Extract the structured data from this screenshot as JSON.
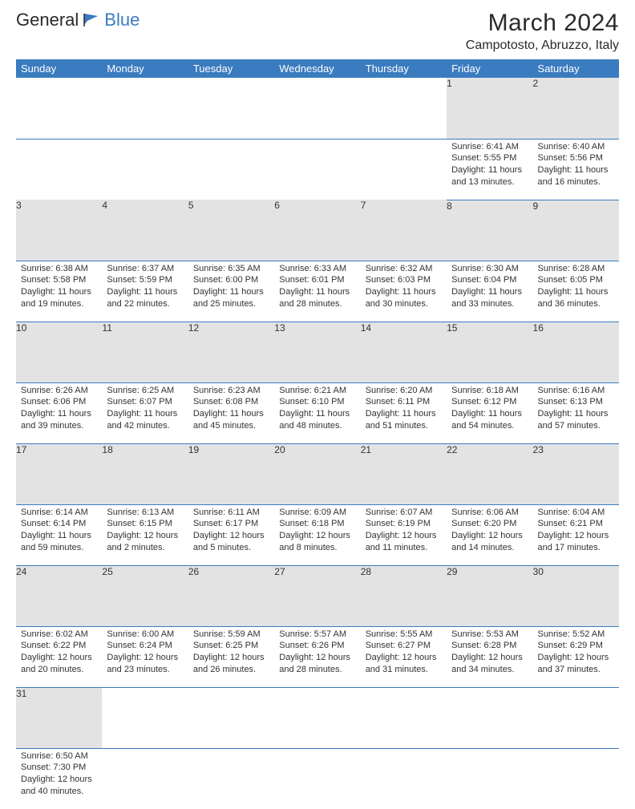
{
  "brand": {
    "part1": "General",
    "part2": "Blue"
  },
  "title": "March 2024",
  "location": "Campotosto, Abruzzo, Italy",
  "colors": {
    "header_bg": "#3b7bbf",
    "header_text": "#ffffff",
    "daynum_bg": "#e3e3e3",
    "border": "#3b7bbf",
    "text": "#333333",
    "page_bg": "#ffffff"
  },
  "dayHeaders": [
    "Sunday",
    "Monday",
    "Tuesday",
    "Wednesday",
    "Thursday",
    "Friday",
    "Saturday"
  ],
  "weeks": [
    [
      null,
      null,
      null,
      null,
      null,
      {
        "n": "1",
        "sunrise": "6:41 AM",
        "sunset": "5:55 PM",
        "daylight": "11 hours and 13 minutes."
      },
      {
        "n": "2",
        "sunrise": "6:40 AM",
        "sunset": "5:56 PM",
        "daylight": "11 hours and 16 minutes."
      }
    ],
    [
      {
        "n": "3",
        "sunrise": "6:38 AM",
        "sunset": "5:58 PM",
        "daylight": "11 hours and 19 minutes."
      },
      {
        "n": "4",
        "sunrise": "6:37 AM",
        "sunset": "5:59 PM",
        "daylight": "11 hours and 22 minutes."
      },
      {
        "n": "5",
        "sunrise": "6:35 AM",
        "sunset": "6:00 PM",
        "daylight": "11 hours and 25 minutes."
      },
      {
        "n": "6",
        "sunrise": "6:33 AM",
        "sunset": "6:01 PM",
        "daylight": "11 hours and 28 minutes."
      },
      {
        "n": "7",
        "sunrise": "6:32 AM",
        "sunset": "6:03 PM",
        "daylight": "11 hours and 30 minutes."
      },
      {
        "n": "8",
        "sunrise": "6:30 AM",
        "sunset": "6:04 PM",
        "daylight": "11 hours and 33 minutes."
      },
      {
        "n": "9",
        "sunrise": "6:28 AM",
        "sunset": "6:05 PM",
        "daylight": "11 hours and 36 minutes."
      }
    ],
    [
      {
        "n": "10",
        "sunrise": "6:26 AM",
        "sunset": "6:06 PM",
        "daylight": "11 hours and 39 minutes."
      },
      {
        "n": "11",
        "sunrise": "6:25 AM",
        "sunset": "6:07 PM",
        "daylight": "11 hours and 42 minutes."
      },
      {
        "n": "12",
        "sunrise": "6:23 AM",
        "sunset": "6:08 PM",
        "daylight": "11 hours and 45 minutes."
      },
      {
        "n": "13",
        "sunrise": "6:21 AM",
        "sunset": "6:10 PM",
        "daylight": "11 hours and 48 minutes."
      },
      {
        "n": "14",
        "sunrise": "6:20 AM",
        "sunset": "6:11 PM",
        "daylight": "11 hours and 51 minutes."
      },
      {
        "n": "15",
        "sunrise": "6:18 AM",
        "sunset": "6:12 PM",
        "daylight": "11 hours and 54 minutes."
      },
      {
        "n": "16",
        "sunrise": "6:16 AM",
        "sunset": "6:13 PM",
        "daylight": "11 hours and 57 minutes."
      }
    ],
    [
      {
        "n": "17",
        "sunrise": "6:14 AM",
        "sunset": "6:14 PM",
        "daylight": "11 hours and 59 minutes."
      },
      {
        "n": "18",
        "sunrise": "6:13 AM",
        "sunset": "6:15 PM",
        "daylight": "12 hours and 2 minutes."
      },
      {
        "n": "19",
        "sunrise": "6:11 AM",
        "sunset": "6:17 PM",
        "daylight": "12 hours and 5 minutes."
      },
      {
        "n": "20",
        "sunrise": "6:09 AM",
        "sunset": "6:18 PM",
        "daylight": "12 hours and 8 minutes."
      },
      {
        "n": "21",
        "sunrise": "6:07 AM",
        "sunset": "6:19 PM",
        "daylight": "12 hours and 11 minutes."
      },
      {
        "n": "22",
        "sunrise": "6:06 AM",
        "sunset": "6:20 PM",
        "daylight": "12 hours and 14 minutes."
      },
      {
        "n": "23",
        "sunrise": "6:04 AM",
        "sunset": "6:21 PM",
        "daylight": "12 hours and 17 minutes."
      }
    ],
    [
      {
        "n": "24",
        "sunrise": "6:02 AM",
        "sunset": "6:22 PM",
        "daylight": "12 hours and 20 minutes."
      },
      {
        "n": "25",
        "sunrise": "6:00 AM",
        "sunset": "6:24 PM",
        "daylight": "12 hours and 23 minutes."
      },
      {
        "n": "26",
        "sunrise": "5:59 AM",
        "sunset": "6:25 PM",
        "daylight": "12 hours and 26 minutes."
      },
      {
        "n": "27",
        "sunrise": "5:57 AM",
        "sunset": "6:26 PM",
        "daylight": "12 hours and 28 minutes."
      },
      {
        "n": "28",
        "sunrise": "5:55 AM",
        "sunset": "6:27 PM",
        "daylight": "12 hours and 31 minutes."
      },
      {
        "n": "29",
        "sunrise": "5:53 AM",
        "sunset": "6:28 PM",
        "daylight": "12 hours and 34 minutes."
      },
      {
        "n": "30",
        "sunrise": "5:52 AM",
        "sunset": "6:29 PM",
        "daylight": "12 hours and 37 minutes."
      }
    ],
    [
      {
        "n": "31",
        "sunrise": "6:50 AM",
        "sunset": "7:30 PM",
        "daylight": "12 hours and 40 minutes."
      },
      null,
      null,
      null,
      null,
      null,
      null
    ]
  ],
  "labels": {
    "sunrise": "Sunrise:",
    "sunset": "Sunset:",
    "daylight": "Daylight:"
  }
}
